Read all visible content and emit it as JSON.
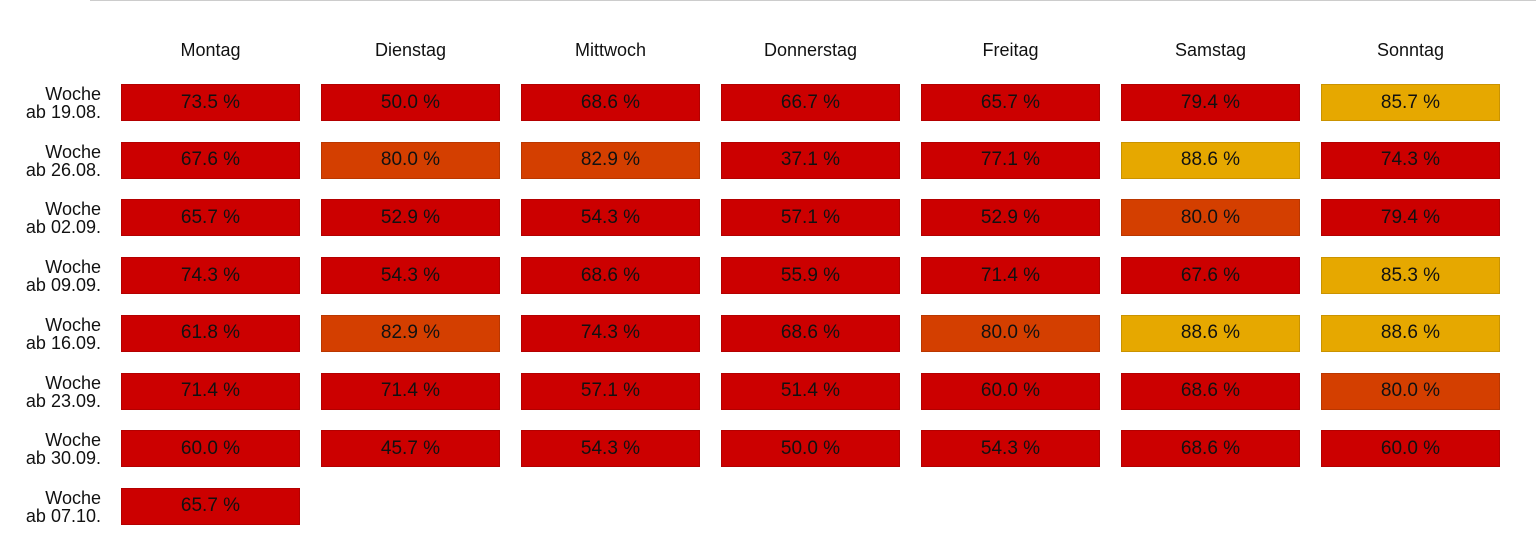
{
  "chart_data": {
    "type": "heatmap",
    "categories": [
      "Montag",
      "Dienstag",
      "Mittwoch",
      "Donnerstag",
      "Freitag",
      "Samstag",
      "Sonntag"
    ],
    "rows": [
      "Woche\nab 19.08.",
      "Woche\nab 26.08.",
      "Woche\nab 02.09.",
      "Woche\nab 09.09.",
      "Woche\nab 16.09.",
      "Woche\nab 23.09.",
      "Woche\nab 30.09.",
      "Woche\nab 07.10."
    ],
    "values": [
      [
        73.5,
        50.0,
        68.6,
        66.7,
        65.7,
        79.4,
        85.7
      ],
      [
        67.6,
        80.0,
        82.9,
        37.1,
        77.1,
        88.6,
        74.3
      ],
      [
        65.7,
        52.9,
        54.3,
        57.1,
        52.9,
        80.0,
        79.4
      ],
      [
        74.3,
        54.3,
        68.6,
        55.9,
        71.4,
        67.6,
        85.3
      ],
      [
        61.8,
        82.9,
        74.3,
        68.6,
        80.0,
        88.6,
        88.6
      ],
      [
        71.4,
        71.4,
        57.1,
        51.4,
        60.0,
        68.6,
        80.0
      ],
      [
        60.0,
        45.7,
        54.3,
        50.0,
        54.3,
        68.6,
        60.0
      ],
      [
        65.7,
        null,
        null,
        null,
        null,
        null,
        null
      ]
    ],
    "value_labels": [
      [
        "73.5 %",
        "50.0 %",
        "68.6 %",
        "66.7 %",
        "65.7 %",
        "79.4 %",
        "85.7 %"
      ],
      [
        "67.6 %",
        "80.0 %",
        "82.9 %",
        "37.1 %",
        "77.1 %",
        "88.6 %",
        "74.3 %"
      ],
      [
        "65.7 %",
        "52.9 %",
        "54.3 %",
        "57.1 %",
        "52.9 %",
        "80.0 %",
        "79.4 %"
      ],
      [
        "74.3 %",
        "54.3 %",
        "68.6 %",
        "55.9 %",
        "71.4 %",
        "67.6 %",
        "85.3 %"
      ],
      [
        "61.8 %",
        "82.9 %",
        "74.3 %",
        "68.6 %",
        "80.0 %",
        "88.6 %",
        "88.6 %"
      ],
      [
        "71.4 %",
        "71.4 %",
        "57.1 %",
        "51.4 %",
        "60.0 %",
        "68.6 %",
        "80.0 %"
      ],
      [
        "60.0 %",
        "45.7 %",
        "54.3 %",
        "50.0 %",
        "54.3 %",
        "68.6 %",
        "60.0 %"
      ],
      [
        "65.7 %",
        null,
        null,
        null,
        null,
        null,
        null
      ]
    ],
    "cell_colors": [
      [
        "#cc0000",
        "#cc0000",
        "#cc0000",
        "#cc0000",
        "#cc0000",
        "#cc0000",
        "#e6a800"
      ],
      [
        "#cc0000",
        "#d43f00",
        "#d43f00",
        "#cc0000",
        "#cc0000",
        "#e6a800",
        "#cc0000"
      ],
      [
        "#cc0000",
        "#cc0000",
        "#cc0000",
        "#cc0000",
        "#cc0000",
        "#d43f00",
        "#cc0000"
      ],
      [
        "#cc0000",
        "#cc0000",
        "#cc0000",
        "#cc0000",
        "#cc0000",
        "#cc0000",
        "#e6a800"
      ],
      [
        "#cc0000",
        "#d43f00",
        "#cc0000",
        "#cc0000",
        "#d43f00",
        "#e6a800",
        "#e6a800"
      ],
      [
        "#cc0000",
        "#cc0000",
        "#cc0000",
        "#cc0000",
        "#cc0000",
        "#cc0000",
        "#d43f00"
      ],
      [
        "#cc0000",
        "#cc0000",
        "#cc0000",
        "#cc0000",
        "#cc0000",
        "#cc0000",
        "#cc0000"
      ],
      [
        "#cc0000",
        null,
        null,
        null,
        null,
        null,
        null
      ]
    ]
  }
}
